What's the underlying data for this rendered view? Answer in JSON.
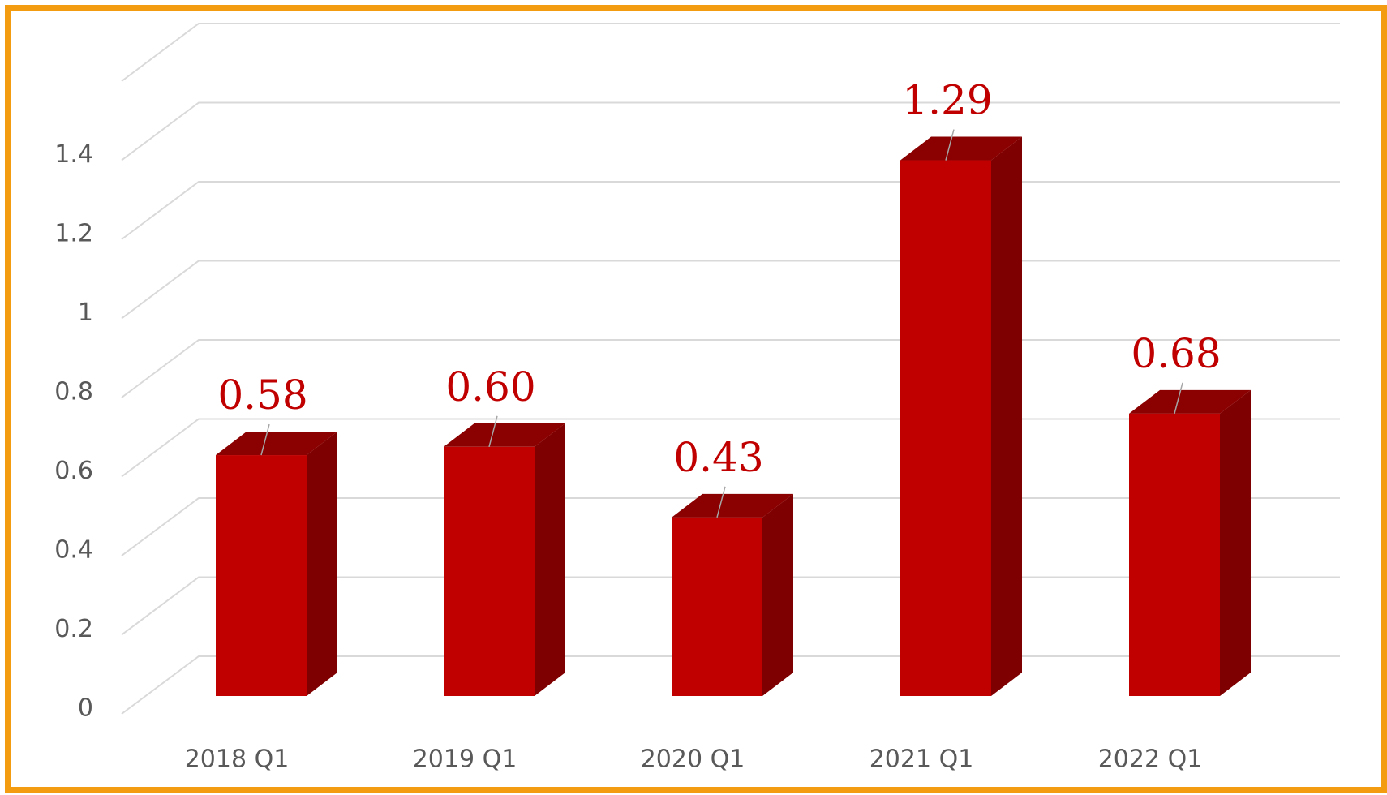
{
  "chart_data": {
    "type": "bar3d",
    "categories": [
      "2018 Q1",
      "2019 Q1",
      "2020 Q1",
      "2021 Q1",
      "2022 Q1"
    ],
    "values": [
      0.58,
      0.6,
      0.43,
      1.29,
      0.68
    ],
    "value_labels": [
      "0.58",
      "0.60",
      "0.43",
      "1.29",
      "0.68"
    ],
    "color": "#c00000",
    "side_color": "#7f0000",
    "top_color": "#8b0000",
    "ylim": [
      0,
      1.6
    ],
    "yticks": [
      0,
      0.2,
      0.4,
      0.6,
      0.8,
      1,
      1.2,
      1.4
    ],
    "grid": true
  }
}
